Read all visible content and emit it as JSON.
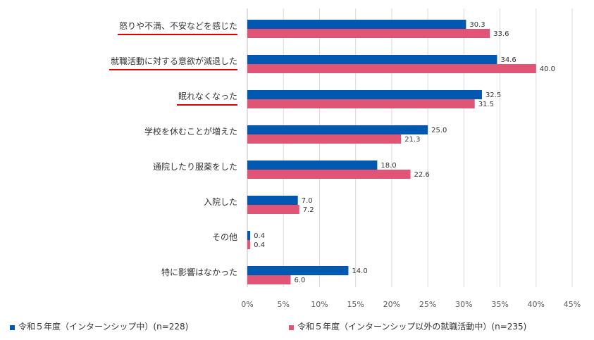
{
  "chart_data": {
    "type": "bar",
    "orientation": "horizontal",
    "categories": [
      "怒りや不満、不安などを感じた",
      "就職活動に対する意欲が減退した",
      "眠れなくなった",
      "学校を休むことが増えた",
      "通院したり服薬をした",
      "入院した",
      "その他",
      "特に影響はなかった"
    ],
    "underlined_categories": [
      0,
      1,
      2
    ],
    "series": [
      {
        "name": "令和５年度（インターンシップ中）(n=228)",
        "color": "#0058b0",
        "values": [
          30.3,
          34.6,
          32.5,
          25.0,
          18.0,
          7.0,
          0.4,
          14.0
        ],
        "labels": [
          "30.3",
          "34.6",
          "32.5",
          "25.0",
          "18.0",
          "7.0",
          "0.4",
          "14.0"
        ]
      },
      {
        "name": "令和５年度（インターンシップ以外の就職活動中）(n=235)",
        "color": "#e05475",
        "values": [
          33.6,
          40.0,
          31.5,
          21.3,
          22.6,
          7.2,
          0.4,
          6.0
        ],
        "labels": [
          "33.6",
          "40.0",
          "31.5",
          "21.3",
          "22.6",
          "7.2",
          "0.4",
          "6.0"
        ]
      }
    ],
    "xlim": [
      0,
      45
    ],
    "xticks": [
      "0%",
      "5%",
      "10%",
      "15%",
      "20%",
      "25%",
      "30%",
      "35%",
      "40%",
      "45%"
    ],
    "grid": true,
    "legend_position": "bottom",
    "underline_color": "#e00000"
  }
}
